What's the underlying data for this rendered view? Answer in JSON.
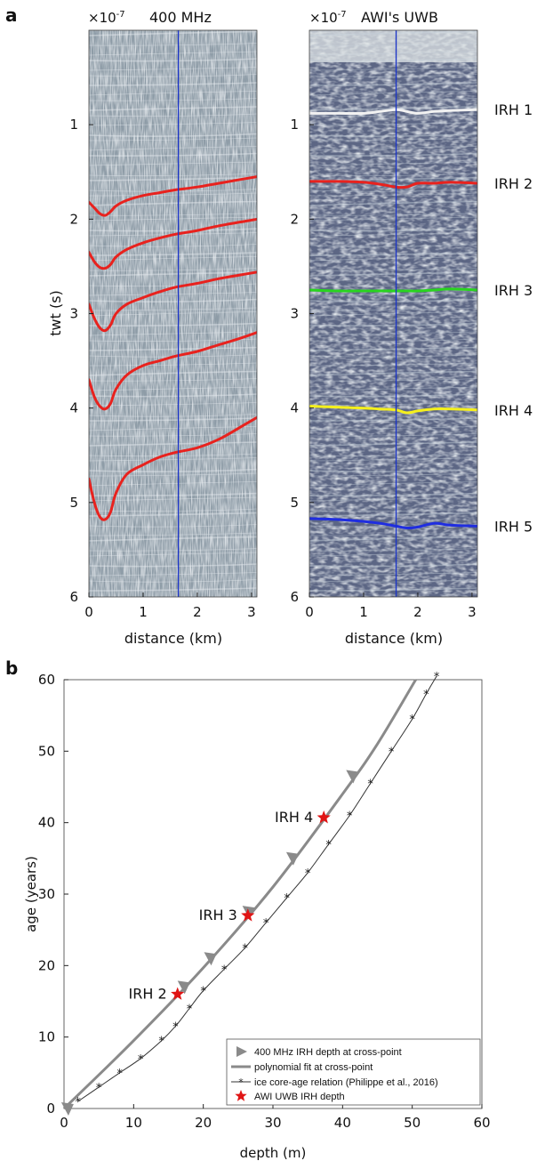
{
  "panel_a": {
    "label": "a",
    "left": {
      "title": "400 MHz",
      "exponent_label": "×10",
      "exponent_power": "-7",
      "xlabel": "distance (km)",
      "ylabel": "twt (s)"
    },
    "right": {
      "title": "AWI's UWB",
      "exponent_label": "×10",
      "exponent_power": "-7",
      "xlabel": "distance (km)"
    }
  },
  "panel_b": {
    "label": "b",
    "xlabel": "depth (m)",
    "ylabel": "age (years)",
    "legend": [
      "400 MHz IRH depth at cross-point",
      "polynomial fit at cross-point",
      "ice core-age relation (Philippe et al., 2016)",
      "AWI UWB IRH depth"
    ],
    "annotations": [
      "IRH 2",
      "IRH 3",
      "IRH 4"
    ]
  },
  "chart_data": [
    {
      "type": "line",
      "title": "400 MHz",
      "ylabel": "twt (s)",
      "xlabel": "distance (km)",
      "xlim": [
        0,
        3.1
      ],
      "ylim": [
        6,
        0
      ],
      "x_ticks": [
        0,
        1,
        2,
        3
      ],
      "y_ticks": [
        1,
        2,
        3,
        4,
        5,
        6
      ],
      "y_unit_exponent": "×10-7",
      "cross_point_distance_km": 1.65,
      "colors": {
        "irh": "#e8221e",
        "crossline": "#1a33c8",
        "radargram": "#9aa7b2"
      },
      "series": [
        {
          "x": [
            0,
            0.1,
            0.2,
            0.3,
            0.4,
            0.5,
            0.7,
            1.0,
            1.3,
            1.6,
            2.0,
            2.4,
            2.8,
            3.1
          ],
          "y": [
            1.82,
            1.88,
            1.94,
            1.96,
            1.92,
            1.86,
            1.8,
            1.75,
            1.72,
            1.69,
            1.66,
            1.62,
            1.58,
            1.55
          ]
        },
        {
          "x": [
            0,
            0.1,
            0.2,
            0.3,
            0.4,
            0.5,
            0.7,
            1.0,
            1.3,
            1.6,
            2.0,
            2.4,
            2.8,
            3.1
          ],
          "y": [
            2.35,
            2.45,
            2.51,
            2.52,
            2.48,
            2.4,
            2.32,
            2.25,
            2.2,
            2.16,
            2.12,
            2.07,
            2.03,
            2.0
          ]
        },
        {
          "x": [
            0,
            0.1,
            0.2,
            0.3,
            0.4,
            0.5,
            0.7,
            1.0,
            1.3,
            1.6,
            2.0,
            2.4,
            2.8,
            3.1
          ],
          "y": [
            2.9,
            3.05,
            3.15,
            3.18,
            3.12,
            3.0,
            2.9,
            2.83,
            2.77,
            2.72,
            2.68,
            2.63,
            2.59,
            2.56
          ]
        },
        {
          "x": [
            0,
            0.1,
            0.2,
            0.3,
            0.4,
            0.5,
            0.7,
            1.0,
            1.3,
            1.6,
            2.0,
            2.4,
            2.8,
            3.1
          ],
          "y": [
            3.7,
            3.88,
            3.98,
            4.01,
            3.95,
            3.8,
            3.65,
            3.55,
            3.5,
            3.45,
            3.4,
            3.33,
            3.26,
            3.2
          ]
        },
        {
          "x": [
            0,
            0.1,
            0.2,
            0.3,
            0.4,
            0.5,
            0.7,
            1.0,
            1.3,
            1.6,
            2.0,
            2.4,
            2.8,
            3.1
          ],
          "y": [
            4.75,
            5.0,
            5.15,
            5.18,
            5.1,
            4.9,
            4.7,
            4.6,
            4.52,
            4.47,
            4.42,
            4.33,
            4.2,
            4.1
          ]
        }
      ]
    },
    {
      "type": "line",
      "title": "AWI's UWB",
      "xlabel": "distance (km)",
      "xlim": [
        0,
        3.1
      ],
      "ylim": [
        6,
        0
      ],
      "x_ticks": [
        0,
        1,
        2,
        3
      ],
      "y_ticks": [
        1,
        2,
        3,
        4,
        5,
        6
      ],
      "y_unit_exponent": "×10-7",
      "cross_point_distance_km": 1.6,
      "series": [
        {
          "name": "IRH 1",
          "color": "#f2f2f2",
          "x": [
            0,
            0.5,
            1.0,
            1.3,
            1.6,
            1.8,
            2.0,
            2.3,
            2.6,
            3.1
          ],
          "y": [
            0.88,
            0.88,
            0.88,
            0.86,
            0.84,
            0.86,
            0.88,
            0.86,
            0.85,
            0.84
          ]
        },
        {
          "name": "IRH 2",
          "color": "#e8221e",
          "x": [
            0,
            0.5,
            1.0,
            1.3,
            1.6,
            1.8,
            2.0,
            2.3,
            2.6,
            3.1
          ],
          "y": [
            1.6,
            1.6,
            1.61,
            1.63,
            1.66,
            1.66,
            1.62,
            1.62,
            1.61,
            1.62
          ]
        },
        {
          "name": "IRH 3",
          "color": "#29d41f",
          "x": [
            0,
            0.5,
            1.0,
            1.3,
            1.6,
            1.8,
            2.0,
            2.3,
            2.6,
            3.1
          ],
          "y": [
            2.75,
            2.76,
            2.76,
            2.76,
            2.76,
            2.76,
            2.76,
            2.75,
            2.74,
            2.75
          ]
        },
        {
          "name": "IRH 4",
          "color": "#f5f01c",
          "x": [
            0,
            0.5,
            1.0,
            1.3,
            1.6,
            1.8,
            2.0,
            2.3,
            2.6,
            3.1
          ],
          "y": [
            3.98,
            3.99,
            4.0,
            4.01,
            4.02,
            4.05,
            4.03,
            4.01,
            4.01,
            4.02
          ]
        },
        {
          "name": "IRH 5",
          "color": "#1f2de0",
          "x": [
            0,
            0.5,
            1.0,
            1.3,
            1.6,
            1.8,
            2.0,
            2.3,
            2.6,
            3.1
          ],
          "y": [
            5.17,
            5.18,
            5.2,
            5.22,
            5.25,
            5.27,
            5.26,
            5.22,
            5.24,
            5.25
          ]
        }
      ]
    },
    {
      "type": "line",
      "xlabel": "depth (m)",
      "ylabel": "age (years)",
      "xlim": [
        0,
        60
      ],
      "ylim": [
        0,
        60
      ],
      "x_ticks": [
        0,
        10,
        20,
        30,
        40,
        50,
        60
      ],
      "y_ticks": [
        0,
        10,
        20,
        30,
        40,
        50,
        60
      ],
      "legend_position": "bottom-right",
      "colors": {
        "fit": "#8a8a8a",
        "core": "#333333",
        "star": "#e01515"
      },
      "series": [
        {
          "name": "400 MHz IRH depth at cross-point",
          "x": [
            0.5,
            17.2,
            21.0,
            26.5,
            32.8,
            41.4
          ],
          "y": [
            0,
            17,
            21,
            27.5,
            35,
            46.5
          ]
        },
        {
          "name": "polynomial fit at cross-point",
          "x": [
            0,
            10,
            20,
            30,
            40,
            45,
            50.5
          ],
          "y": [
            0,
            9.5,
            19.7,
            31,
            44,
            51,
            60
          ]
        },
        {
          "name": "ice core-age relation (Philippe et al., 2016)",
          "x": [
            2,
            5,
            8,
            11,
            14,
            16,
            18,
            20,
            23,
            26,
            29,
            32,
            35,
            38,
            41,
            44,
            47,
            50,
            52,
            53.5
          ],
          "y": [
            1,
            3,
            5,
            7,
            9.5,
            11.5,
            14,
            16.5,
            19.5,
            22.5,
            26,
            29.5,
            33,
            37,
            41,
            45.5,
            50,
            54.5,
            58,
            60.5
          ]
        },
        {
          "name": "AWI UWB IRH depth",
          "x": [
            16.3,
            26.4,
            37.3
          ],
          "y": [
            16,
            27,
            40.7
          ]
        }
      ]
    }
  ]
}
